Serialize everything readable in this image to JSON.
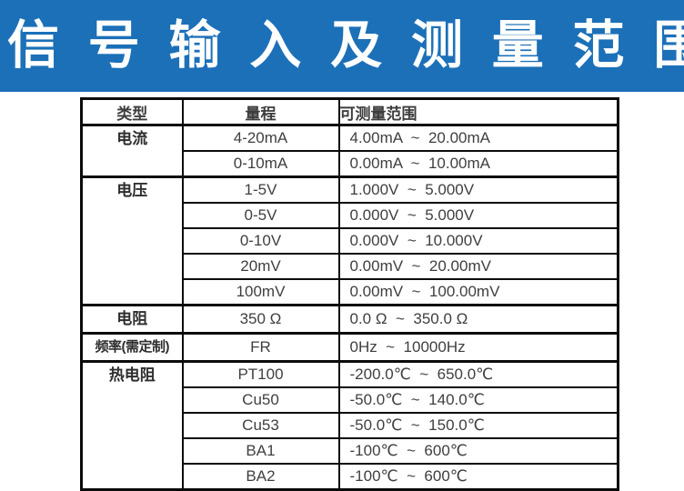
{
  "banner": {
    "title": "信 号 输 入 及 测 量 范 围",
    "bg_color": "#1c70b8",
    "text_color": "#ffffff"
  },
  "table": {
    "headers": {
      "type": "类型",
      "range": "量程",
      "measurable_range": "可测量范围"
    },
    "groups": [
      {
        "type": "电流",
        "rows": [
          {
            "range": "4-20mA",
            "measure": "4.00mA  ~  20.00mA"
          },
          {
            "range": "0-10mA",
            "measure": "0.00mA  ~  10.00mA"
          }
        ]
      },
      {
        "type": "电压",
        "rows": [
          {
            "range": "1-5V",
            "measure": "1.000V  ~  5.000V"
          },
          {
            "range": "0-5V",
            "measure": "0.000V  ~  5.000V"
          },
          {
            "range": "0-10V",
            "measure": "0.000V  ~  10.000V"
          },
          {
            "range": "20mV",
            "measure": "0.00mV  ~  20.00mV"
          },
          {
            "range": "100mV",
            "measure": "0.00mV  ~  100.00mV"
          }
        ]
      },
      {
        "type": "电阻",
        "rows": [
          {
            "range": "350 Ω",
            "measure": "0.0 Ω  ~  350.0 Ω"
          }
        ]
      },
      {
        "type": "频率(需定制)",
        "rows": [
          {
            "range": "FR",
            "measure": "0Hz  ~  10000Hz"
          }
        ]
      },
      {
        "type": "热电阻",
        "rows": [
          {
            "range": "PT100",
            "measure": "-200.0℃  ~  650.0℃"
          },
          {
            "range": "Cu50",
            "measure": "-50.0℃  ~  140.0℃"
          },
          {
            "range": "Cu53",
            "measure": "-50.0℃  ~  150.0℃"
          },
          {
            "range": "BA1",
            "measure": "-100℃  ~  600℃"
          },
          {
            "range": "BA2",
            "measure": "-100℃  ~  600℃"
          }
        ]
      }
    ]
  }
}
